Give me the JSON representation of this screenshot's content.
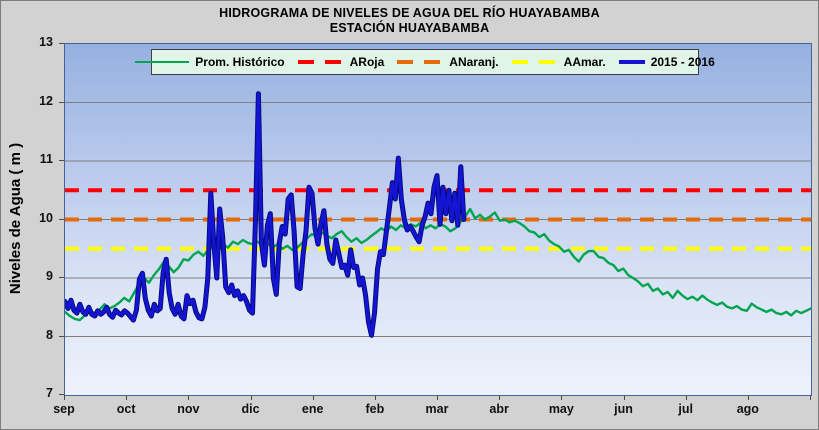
{
  "title": {
    "line1": "HIDROGRAMA DE NIVELES DE AGUA DEL RÍO HUAYABAMBA",
    "line2": "ESTACIÓN HUAYABAMBA"
  },
  "y_axis": {
    "label": "Niveles de Agua ( m )",
    "min": 7,
    "max": 13,
    "ticks": [
      13,
      12,
      11,
      10,
      9,
      8,
      7
    ]
  },
  "x_axis": {
    "months": [
      "sep",
      "oct",
      "nov",
      "dic",
      "ene",
      "feb",
      "mar",
      "abr",
      "may",
      "jun",
      "jul",
      "ago"
    ]
  },
  "legend": {
    "items": [
      {
        "label": "Prom. Histórico",
        "color": "#00a550",
        "line": "thin-solid"
      },
      {
        "label": "ARoja",
        "color": "#ff0000",
        "line": "dashed"
      },
      {
        "label": "ANaranj.",
        "color": "#e56b0a",
        "line": "dashed"
      },
      {
        "label": "AAmar.",
        "color": "#ffff00",
        "line": "dashed"
      },
      {
        "label": "2015 - 2016",
        "color": "#1414d2",
        "line": "thick-solid"
      }
    ]
  },
  "colors": {
    "grid": "#7f7f7f",
    "plot_border": "#44639c",
    "page_bg": "#d2d2d2",
    "legend_bg": "#e0f4e7"
  },
  "chart_data": {
    "type": "line",
    "title": "HIDROGRAMA DE NIVELES DE AGUA DEL RÍO HUAYABAMBA",
    "subtitle": "ESTACIÓN HUAYABAMBA",
    "xlabel": "",
    "ylabel": "Niveles de Agua ( m )",
    "ylim": [
      7,
      13
    ],
    "grid": true,
    "legend_position": "top-center",
    "x_categories": [
      "sep",
      "oct",
      "nov",
      "dic",
      "ene",
      "feb",
      "mar",
      "abr",
      "may",
      "jun",
      "jul",
      "ago"
    ],
    "reference_lines": [
      {
        "name": "ARoja",
        "value": 10.5,
        "color": "#ff0000",
        "style": "dashed"
      },
      {
        "name": "ANaranj.",
        "value": 10.0,
        "color": "#e56b0a",
        "style": "dashed"
      },
      {
        "name": "AAmar.",
        "value": 9.5,
        "color": "#ffff00",
        "style": "dashed"
      }
    ],
    "series": [
      {
        "name": "Prom. Histórico",
        "color": "#00a550",
        "width": 2.4,
        "x_start_month": 0,
        "x_step_month": 0.07947,
        "values": [
          8.42,
          8.35,
          8.3,
          8.28,
          8.36,
          8.44,
          8.4,
          8.46,
          8.55,
          8.48,
          8.52,
          8.58,
          8.66,
          8.6,
          8.75,
          8.9,
          9.0,
          8.92,
          9.05,
          9.15,
          9.28,
          9.2,
          9.1,
          9.18,
          9.32,
          9.3,
          9.4,
          9.45,
          9.38,
          9.48,
          9.55,
          9.45,
          9.58,
          9.52,
          9.62,
          9.58,
          9.65,
          9.6,
          9.58,
          9.62,
          9.55,
          9.6,
          9.52,
          9.58,
          9.5,
          9.55,
          9.48,
          9.52,
          9.6,
          9.68,
          9.75,
          9.7,
          9.78,
          9.72,
          9.68,
          9.75,
          9.8,
          9.7,
          9.62,
          9.68,
          9.6,
          9.65,
          9.72,
          9.78,
          9.85,
          9.8,
          9.88,
          9.82,
          9.9,
          9.85,
          9.92,
          9.88,
          9.95,
          9.85,
          9.9,
          9.85,
          9.92,
          9.88,
          9.8,
          9.85,
          9.95,
          10.05,
          10.18,
          10.02,
          10.08,
          10.0,
          10.05,
          10.12,
          9.98,
          10.0,
          9.95,
          9.98,
          9.94,
          9.88,
          9.8,
          9.78,
          9.7,
          9.75,
          9.64,
          9.58,
          9.54,
          9.45,
          9.48,
          9.36,
          9.28,
          9.4,
          9.46,
          9.46,
          9.36,
          9.34,
          9.26,
          9.22,
          9.12,
          9.16,
          9.05,
          9.0,
          8.94,
          8.86,
          8.9,
          8.78,
          8.82,
          8.72,
          8.76,
          8.66,
          8.78,
          8.7,
          8.64,
          8.68,
          8.62,
          8.7,
          8.63,
          8.58,
          8.54,
          8.58,
          8.51,
          8.48,
          8.52,
          8.46,
          8.44,
          8.56,
          8.5,
          8.46,
          8.42,
          8.46,
          8.4,
          8.38,
          8.42,
          8.36,
          8.44,
          8.4,
          8.44,
          8.48
        ]
      },
      {
        "name": "2015 - 2016",
        "color": "#1414d2",
        "width": 3.2,
        "x_start_month": 0,
        "x_step_month": 0.04787,
        "values": [
          8.6,
          8.48,
          8.62,
          8.45,
          8.4,
          8.55,
          8.42,
          8.38,
          8.5,
          8.38,
          8.35,
          8.44,
          8.38,
          8.42,
          8.5,
          8.38,
          8.33,
          8.45,
          8.4,
          8.37,
          8.44,
          8.4,
          8.34,
          8.28,
          8.45,
          8.98,
          9.08,
          8.65,
          8.45,
          8.35,
          8.55,
          8.44,
          8.48,
          9.1,
          9.32,
          8.75,
          8.48,
          8.38,
          8.55,
          8.35,
          8.3,
          8.7,
          8.56,
          8.62,
          8.42,
          8.32,
          8.3,
          8.5,
          9.0,
          10.45,
          9.6,
          9.0,
          10.18,
          9.7,
          8.85,
          8.75,
          8.88,
          8.7,
          8.78,
          8.64,
          8.7,
          8.6,
          8.45,
          8.4,
          10.0,
          12.15,
          9.6,
          9.22,
          9.9,
          10.1,
          9.0,
          8.72,
          9.6,
          9.88,
          9.75,
          10.35,
          10.42,
          9.8,
          8.85,
          8.82,
          9.4,
          9.8,
          10.55,
          10.45,
          9.85,
          9.58,
          9.92,
          10.15,
          9.58,
          9.32,
          9.25,
          9.65,
          9.42,
          9.18,
          9.22,
          9.05,
          9.48,
          9.18,
          9.2,
          8.88,
          9.0,
          8.7,
          8.25,
          8.02,
          8.4,
          9.15,
          9.45,
          9.4,
          9.8,
          10.2,
          10.63,
          10.35,
          11.05,
          10.35,
          10.0,
          9.82,
          9.88,
          9.8,
          9.7,
          9.62,
          9.9,
          10.05,
          10.28,
          10.1,
          10.55,
          10.75,
          9.92,
          10.55,
          10.1,
          10.5,
          9.98,
          10.45,
          9.9,
          10.9,
          10.0
        ]
      }
    ]
  }
}
